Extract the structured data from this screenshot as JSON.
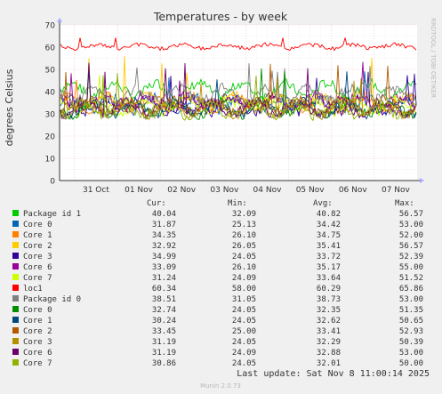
{
  "chart_data": {
    "type": "line",
    "title": "Temperatures - by week",
    "ylabel": "degrees Celsius",
    "watermark": "RRDTOOL / TOBI OETIKER",
    "ylim": [
      0,
      70
    ],
    "y_ticks": [
      0,
      10,
      20,
      30,
      40,
      50,
      60,
      70
    ],
    "x_ticks": [
      "31 Oct",
      "01 Nov",
      "02 Nov",
      "03 Nov",
      "04 Nov",
      "05 Nov",
      "06 Nov",
      "07 Nov"
    ],
    "grid": true,
    "legend_position": "bottom",
    "column_headers": [
      "Cur:",
      "Min:",
      "Avg:",
      "Max:"
    ],
    "series": [
      {
        "name": "Package id 1",
        "color": "#00cc00",
        "cur": "40.04",
        "min": "32.09",
        "avg": "40.82",
        "max": "56.57"
      },
      {
        "name": "Core 0",
        "color": "#0066b3",
        "cur": "31.87",
        "min": "25.13",
        "avg": "34.42",
        "max": "53.00"
      },
      {
        "name": "Core 1",
        "color": "#ff8000",
        "cur": "34.35",
        "min": "26.10",
        "avg": "34.75",
        "max": "52.00"
      },
      {
        "name": "Core 2",
        "color": "#ffcc00",
        "cur": "32.92",
        "min": "26.05",
        "avg": "35.41",
        "max": "56.57"
      },
      {
        "name": "Core 3",
        "color": "#330099",
        "cur": "34.99",
        "min": "24.05",
        "avg": "33.72",
        "max": "52.39"
      },
      {
        "name": "Core 6",
        "color": "#990099",
        "cur": "33.09",
        "min": "26.10",
        "avg": "35.17",
        "max": "55.00"
      },
      {
        "name": "Core 7",
        "color": "#ccff00",
        "cur": "31.24",
        "min": "24.09",
        "avg": "33.64",
        "max": "51.52"
      },
      {
        "name": "loc1",
        "color": "#ff0000",
        "cur": "60.34",
        "min": "58.00",
        "avg": "60.29",
        "max": "65.86"
      },
      {
        "name": "Package id 0",
        "color": "#808080",
        "cur": "38.51",
        "min": "31.05",
        "avg": "38.73",
        "max": "53.00"
      },
      {
        "name": "Core 0",
        "color": "#008f00",
        "cur": "32.74",
        "min": "24.05",
        "avg": "32.35",
        "max": "51.35"
      },
      {
        "name": "Core 1",
        "color": "#00487d",
        "cur": "30.24",
        "min": "24.05",
        "avg": "32.62",
        "max": "50.65"
      },
      {
        "name": "Core 2",
        "color": "#b35a00",
        "cur": "33.45",
        "min": "25.00",
        "avg": "33.41",
        "max": "52.93"
      },
      {
        "name": "Core 3",
        "color": "#b38f00",
        "cur": "31.19",
        "min": "24.05",
        "avg": "32.29",
        "max": "50.39"
      },
      {
        "name": "Core 6",
        "color": "#6b006b",
        "cur": "31.19",
        "min": "24.09",
        "avg": "32.88",
        "max": "53.00"
      },
      {
        "name": "Core 7",
        "color": "#8fb300",
        "cur": "30.86",
        "min": "24.05",
        "avg": "32.01",
        "max": "50.00"
      }
    ],
    "last_update": "Last update: Sat Nov  8 11:00:14 2025",
    "footer": "Munin 2.0.73"
  }
}
